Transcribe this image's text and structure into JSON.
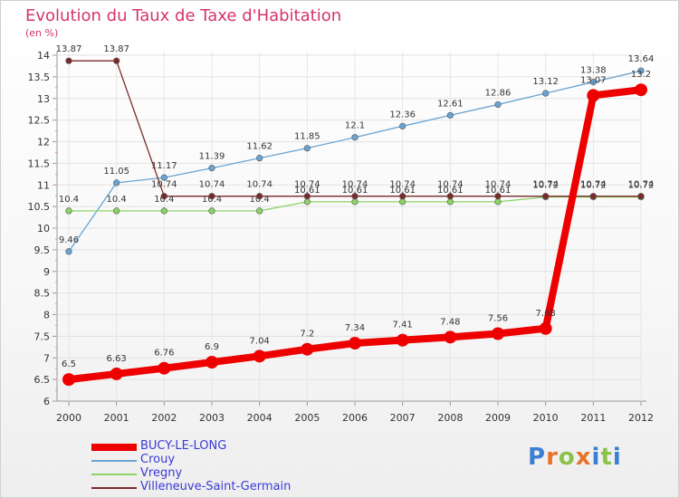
{
  "chart_data": {
    "type": "line",
    "title": "Evolution du Taux de Taxe d'Habitation",
    "subtitle": "(en %)",
    "categories": [
      "2000",
      "2001",
      "2002",
      "2003",
      "2004",
      "2005",
      "2006",
      "2007",
      "2008",
      "2009",
      "2010",
      "2011",
      "2012"
    ],
    "ylim": [
      6,
      14
    ],
    "y_ticks": [
      "6",
      "6.5",
      "7",
      "7.5",
      "8",
      "8.5",
      "9",
      "9.5",
      "10",
      "10.5",
      "11",
      "11.5",
      "12",
      "12.5",
      "13",
      "13.5",
      "14"
    ],
    "grid": true,
    "legend_position": "bottom-left",
    "series": [
      {
        "name": "BUCY-LE-LONG",
        "color": "#ee0000",
        "values": [
          6.5,
          6.63,
          6.76,
          6.9,
          7.04,
          7.2,
          7.34,
          7.41,
          7.48,
          7.56,
          7.68,
          13.07,
          13.2
        ],
        "labels": [
          "6.5",
          "6.63",
          "6.76",
          "6.9",
          "7.04",
          "7.2",
          "7.34",
          "7.41",
          "7.48",
          "7.56",
          "7.68",
          "13.07",
          "13.2"
        ]
      },
      {
        "name": "Crouy",
        "color": "#6aa4d2",
        "values": [
          9.46,
          11.05,
          11.17,
          11.39,
          11.62,
          11.85,
          12.1,
          12.36,
          12.61,
          12.86,
          13.12,
          13.38,
          13.64
        ],
        "labels": [
          "9.46",
          "11.05",
          "11.17",
          "11.39",
          "11.62",
          "11.85",
          "12.1",
          "12.36",
          "12.61",
          "12.86",
          "13.12",
          "13.38",
          "13.64"
        ]
      },
      {
        "name": "Vregny",
        "color": "#8cd264",
        "values": [
          10.4,
          10.4,
          10.4,
          10.4,
          10.4,
          10.61,
          10.61,
          10.61,
          10.61,
          10.61,
          10.72,
          10.72,
          10.72
        ],
        "labels": [
          "10.4",
          "10.4",
          "10.4",
          "10.4",
          "10.4",
          "10.61",
          "10.61",
          "10.61",
          "10.61",
          "10.61",
          "10.72",
          "10.72",
          "10.72"
        ]
      },
      {
        "name": "Villeneuve-Saint-Germain",
        "color": "#7a2a2a",
        "values": [
          13.87,
          13.87,
          10.74,
          10.74,
          10.74,
          10.74,
          10.74,
          10.74,
          10.74,
          10.74,
          10.74,
          10.74,
          10.74
        ],
        "labels": [
          "13.87",
          "13.87",
          "10.74",
          "10.74",
          "10.74",
          "10.74",
          "10.74",
          "10.74",
          "10.74",
          "10.74",
          "10.74",
          "10.74",
          "10.74"
        ]
      }
    ]
  },
  "brand": {
    "letters": [
      "P",
      "r",
      "o",
      "x",
      "i",
      "t",
      "i"
    ],
    "colors": [
      "#3b7fd4",
      "#e8742a",
      "#8bc34a",
      "#e8742a",
      "#3b7fd4",
      "#8bc34a",
      "#3b7fd4"
    ]
  }
}
